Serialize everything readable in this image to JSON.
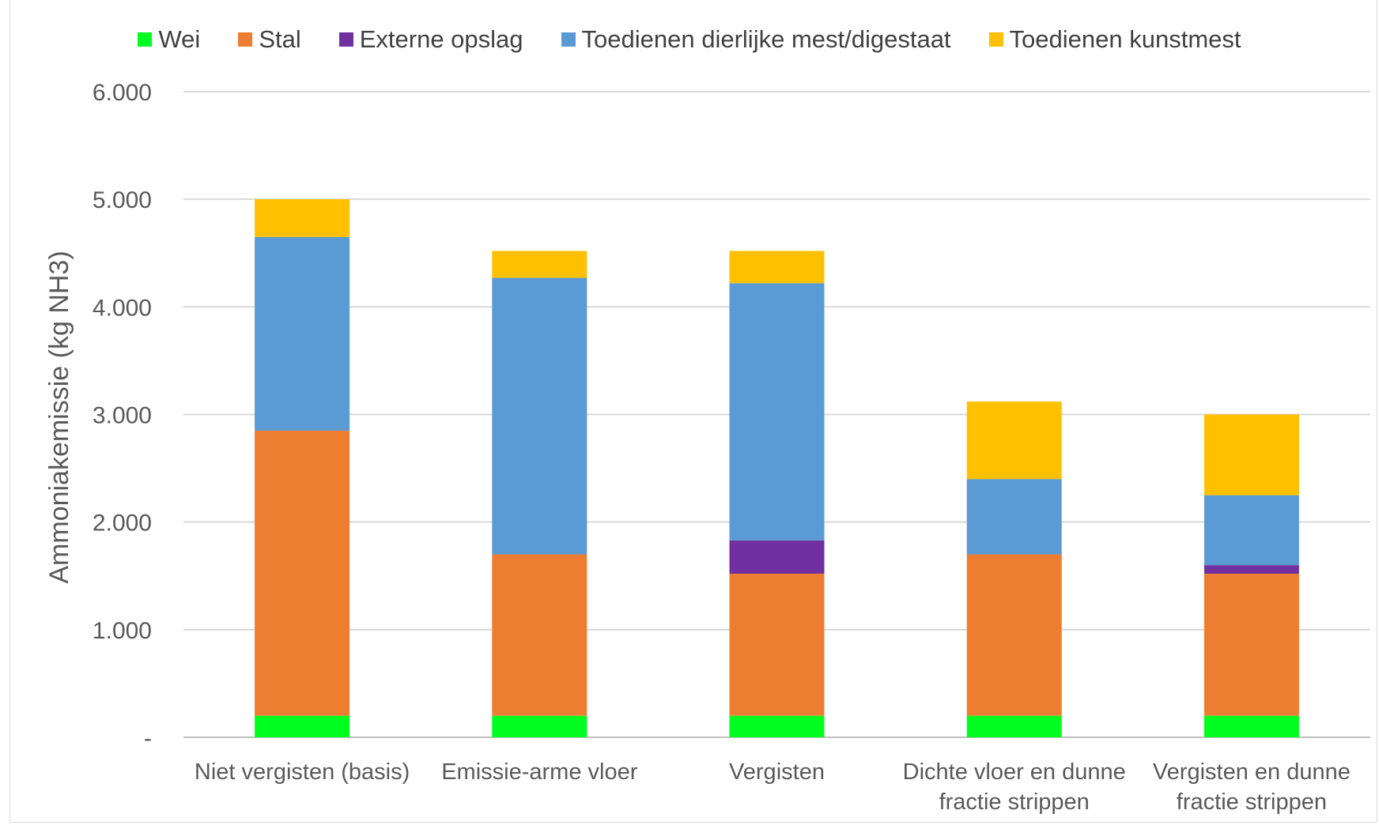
{
  "chart_data": {
    "type": "bar",
    "stacked": true,
    "title": "",
    "xlabel": "",
    "ylabel": "Ammoniakemissie (kg NH3)",
    "ylim": [
      0,
      6000
    ],
    "yticks": [
      {
        "value": 0,
        "label": "-"
      },
      {
        "value": 1000,
        "label": "1.000"
      },
      {
        "value": 2000,
        "label": "2.000"
      },
      {
        "value": 3000,
        "label": "3.000"
      },
      {
        "value": 4000,
        "label": "4.000"
      },
      {
        "value": 5000,
        "label": "5.000"
      },
      {
        "value": 6000,
        "label": "6.000"
      }
    ],
    "grid": true,
    "legend_position": "top",
    "categories": [
      [
        "Niet vergisten (basis)"
      ],
      [
        "Emissie-arme vloer"
      ],
      [
        "Vergisten"
      ],
      [
        "Dichte vloer en dunne",
        "fractie strippen"
      ],
      [
        "Vergisten en dunne",
        "fractie strippen"
      ]
    ],
    "series": [
      {
        "name": "Wei",
        "color": "#00ff21",
        "values": [
          200,
          200,
          200,
          200,
          200
        ]
      },
      {
        "name": "Stal",
        "color": "#ed7d31",
        "values": [
          2650,
          1500,
          1320,
          1500,
          1320
        ]
      },
      {
        "name": "Externe opslag",
        "color": "#7030a0",
        "values": [
          0,
          0,
          310,
          0,
          80
        ]
      },
      {
        "name": "Toedienen dierlijke mest/digestaat",
        "color": "#5b9bd5",
        "values": [
          1800,
          2570,
          2390,
          700,
          650
        ]
      },
      {
        "name": "Toedienen kunstmest",
        "color": "#ffc000",
        "values": [
          350,
          250,
          300,
          720,
          750
        ]
      }
    ]
  }
}
